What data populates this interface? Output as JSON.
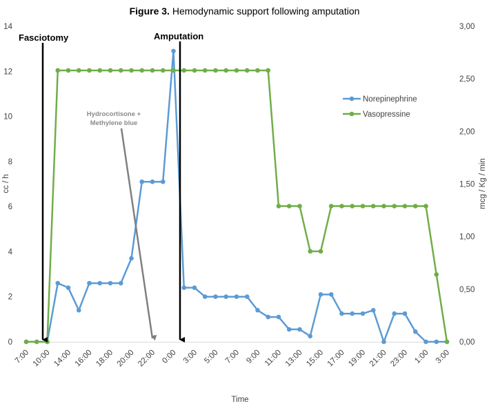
{
  "chart_data": {
    "type": "line",
    "title_prefix": "Figure 3.",
    "title_rest": " Hemodynamic support following amputation",
    "xlabel": "Time",
    "ylabel_left": "cc / h",
    "ylabel_right": "mcg / Kg / min",
    "ylim_left": [
      0,
      14
    ],
    "ylim_right": [
      0,
      3
    ],
    "yticks_left": [
      "0",
      "2",
      "4",
      "6",
      "8",
      "10",
      "12",
      "14"
    ],
    "yticks_right": [
      "0,00",
      "0,50",
      "1,00",
      "1,50",
      "2,00",
      "2,50",
      "3,00"
    ],
    "x_tick_labels": [
      "7:00",
      "10:00",
      "14:00",
      "16:00",
      "18:00",
      "20:00",
      "22:00",
      "0:00",
      "3:00",
      "5:00",
      "7:00",
      "9:00",
      "11:00",
      "13:00",
      "15:00",
      "17:00",
      "19:00",
      "21:00",
      "23:00",
      "1:00",
      "3:00"
    ],
    "x_point_count": 41,
    "legend_position": "right",
    "series": [
      {
        "name": "Norepinephrine",
        "axis": "left",
        "color": "#5b9bd5",
        "values": [
          0,
          0,
          0,
          2.6,
          2.4,
          1.4,
          2.6,
          2.6,
          2.6,
          2.6,
          3.7,
          7.1,
          7.1,
          7.1,
          12.9,
          2.4,
          2.4,
          2.0,
          2.0,
          2.0,
          2.0,
          2.0,
          1.4,
          1.1,
          1.1,
          0.55,
          0.55,
          0.25,
          2.1,
          2.1,
          1.25,
          1.25,
          1.25,
          1.4,
          0,
          1.25,
          1.25,
          0.45,
          0,
          0,
          0
        ]
      },
      {
        "name": "Vasopressine",
        "axis": "right",
        "color": "#70ad47",
        "values": [
          0,
          0,
          0,
          2.58,
          2.58,
          2.58,
          2.58,
          2.58,
          2.58,
          2.58,
          2.58,
          2.58,
          2.58,
          2.58,
          2.58,
          2.58,
          2.58,
          2.58,
          2.58,
          2.58,
          2.58,
          2.58,
          2.58,
          2.58,
          1.29,
          1.29,
          1.29,
          0.86,
          0.86,
          1.29,
          1.29,
          1.29,
          1.29,
          1.29,
          1.29,
          1.29,
          1.29,
          1.29,
          1.29,
          0.64,
          0
        ]
      }
    ],
    "annotations": [
      {
        "label": "Fasciotomy",
        "style": "bold",
        "arrow_color": "#000000"
      },
      {
        "label": "Amputation",
        "style": "bold",
        "arrow_color": "#000000"
      },
      {
        "label_lines": [
          "Hydrocortisone +",
          "Methylene blue"
        ],
        "style": "grey",
        "arrow_color": "#7f7f7f"
      }
    ]
  }
}
